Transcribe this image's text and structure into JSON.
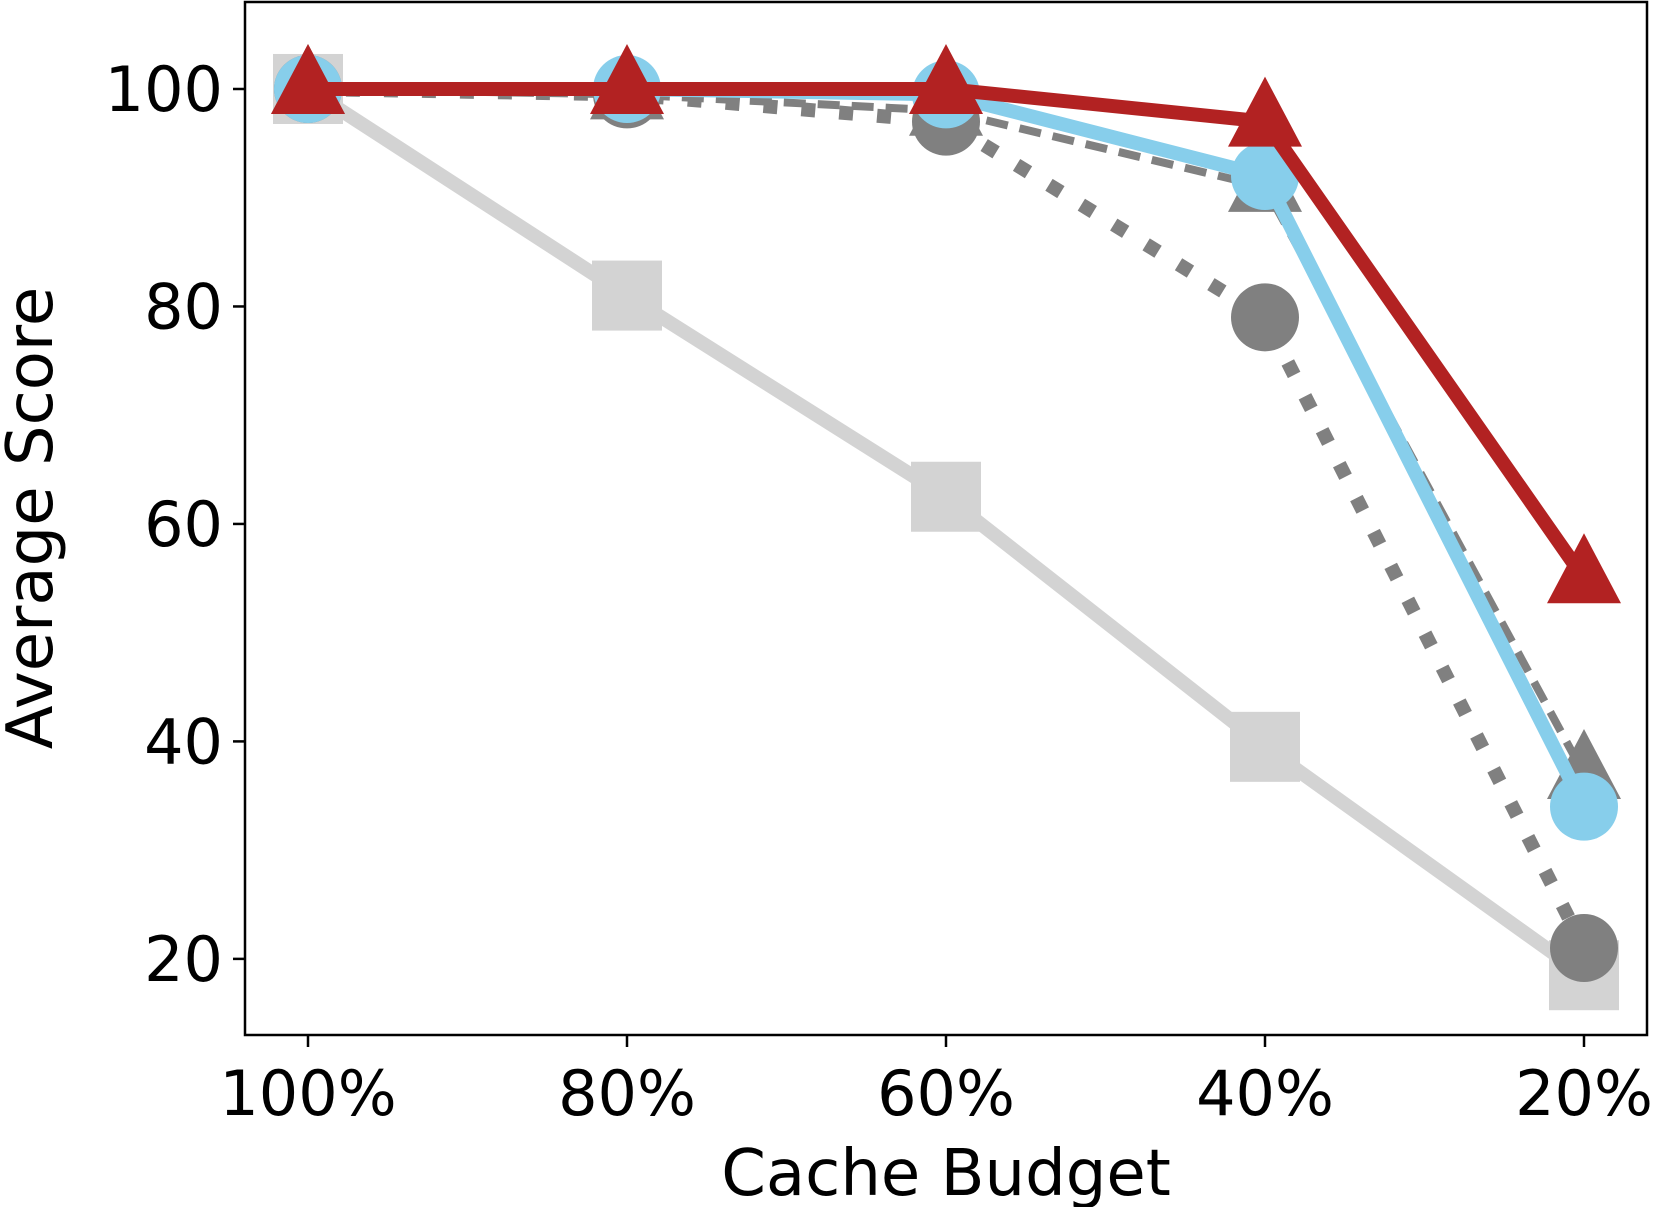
{
  "chart_data": {
    "type": "line",
    "title": "",
    "xlabel": "Cache Budget",
    "ylabel": "Average Score",
    "categories": [
      "100%",
      "80%",
      "60%",
      "40%",
      "20%"
    ],
    "yticks": [
      20,
      40,
      60,
      80,
      100
    ],
    "ylim": [
      13,
      108
    ],
    "grid": false,
    "legend": "none",
    "series": [
      {
        "values": [
          100,
          81,
          62.5,
          39.5,
          18.5
        ],
        "color": "#d3d3d3",
        "linestyle": "solid",
        "marker": "square"
      },
      {
        "values": [
          100,
          99.5,
          97,
          79,
          21
        ],
        "color": "#808080",
        "linestyle": "dotted",
        "marker": "circle"
      },
      {
        "values": [
          100,
          99.5,
          98,
          91,
          37
        ],
        "color": "#808080",
        "linestyle": "dashed",
        "marker": "triangle"
      },
      {
        "values": [
          100,
          100,
          99.5,
          92,
          34
        ],
        "color": "#87ceeb",
        "linestyle": "solid",
        "marker": "circle"
      },
      {
        "values": [
          100,
          100,
          100,
          97,
          55
        ],
        "color": "#b22222",
        "linestyle": "solid",
        "marker": "triangle"
      }
    ]
  }
}
